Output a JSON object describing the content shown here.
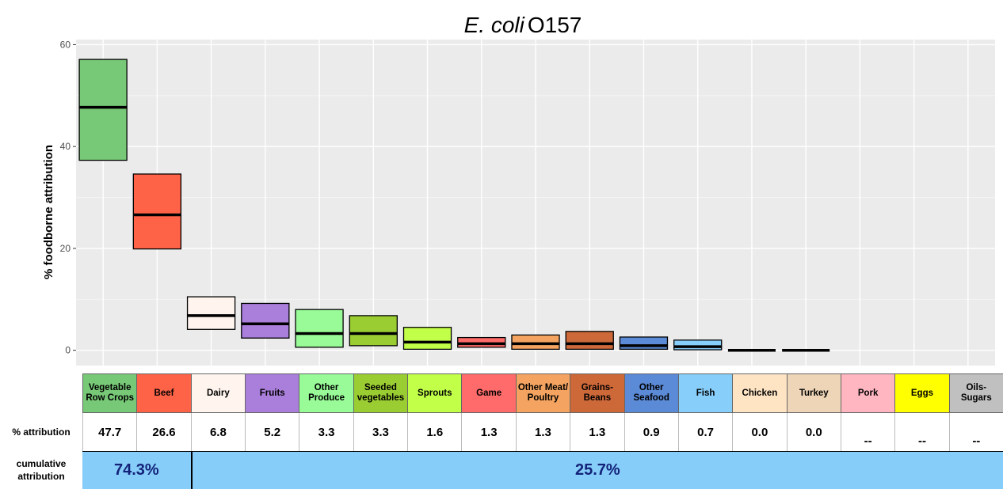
{
  "chart_data": {
    "type": "box",
    "title_italic": "E. coli",
    "title_rest": "O157",
    "ylabel": "% foodborne attribution",
    "ylim": [
      -3,
      61
    ],
    "yticks": [
      0,
      20,
      40,
      60
    ],
    "grid": true,
    "categories": [
      "Vegetable Row Crops",
      "Beef",
      "Dairy",
      "Fruits",
      "Other Produce",
      "Seeded vegetables",
      "Sprouts",
      "Game",
      "Other Meat/ Poultry",
      "Grains-Beans",
      "Other Seafood",
      "Fish",
      "Chicken",
      "Turkey",
      "Pork",
      "Eggs",
      "Oils-Sugars"
    ],
    "boxes": [
      {
        "category": "Vegetable Row Crops",
        "low": 37.3,
        "median": 47.7,
        "high": 57.1,
        "color": "#77c877"
      },
      {
        "category": "Beef",
        "low": 19.9,
        "median": 26.6,
        "high": 34.6,
        "color": "#ff6347"
      },
      {
        "category": "Dairy",
        "low": 4.1,
        "median": 6.8,
        "high": 10.5,
        "color": "#fff5ee"
      },
      {
        "category": "Fruits",
        "low": 2.4,
        "median": 5.2,
        "high": 9.2,
        "color": "#a97fdb"
      },
      {
        "category": "Other Produce",
        "low": 0.6,
        "median": 3.3,
        "high": 8.0,
        "color": "#98fb98"
      },
      {
        "category": "Seeded vegetables",
        "low": 0.9,
        "median": 3.3,
        "high": 6.8,
        "color": "#9acd32"
      },
      {
        "category": "Sprouts",
        "low": 0.2,
        "median": 1.6,
        "high": 4.5,
        "color": "#c2ff48"
      },
      {
        "category": "Game",
        "low": 0.6,
        "median": 1.3,
        "high": 2.5,
        "color": "#ff6a6a"
      },
      {
        "category": "Other Meat/ Poultry",
        "low": 0.2,
        "median": 1.3,
        "high": 3.0,
        "color": "#f4a460"
      },
      {
        "category": "Grains-Beans",
        "low": 0.2,
        "median": 1.3,
        "high": 3.7,
        "color": "#cd6839"
      },
      {
        "category": "Other Seafood",
        "low": 0.2,
        "median": 0.9,
        "high": 2.6,
        "color": "#5b8ad6"
      },
      {
        "category": "Fish",
        "low": 0.1,
        "median": 0.7,
        "high": 2.0,
        "color": "#87cefa"
      },
      {
        "category": "Chicken",
        "low": 0.0,
        "median": 0.0,
        "high": 0.0,
        "color": "#ffe4c4"
      },
      {
        "category": "Turkey",
        "low": 0.0,
        "median": 0.0,
        "high": 0.0,
        "color": "#eed5b7"
      }
    ]
  },
  "table": {
    "attribution_label": "% attribution",
    "cumulative_label": "cumulative attribution",
    "cells": [
      {
        "label": "Vegetable Row Crops",
        "value": "47.7",
        "color": "#77c877"
      },
      {
        "label": "Beef",
        "value": "26.6",
        "color": "#ff6347"
      },
      {
        "label": "Dairy",
        "value": "6.8",
        "color": "#fff5ee"
      },
      {
        "label": "Fruits",
        "value": "5.2",
        "color": "#a97fdb"
      },
      {
        "label": "Other Produce",
        "value": "3.3",
        "color": "#98fb98"
      },
      {
        "label": "Seeded vegetables",
        "value": "3.3",
        "color": "#9acd32"
      },
      {
        "label": "Sprouts",
        "value": "1.6",
        "color": "#c2ff48"
      },
      {
        "label": "Game",
        "value": "1.3",
        "color": "#ff6a6a"
      },
      {
        "label": "Other Meat/ Poultry",
        "value": "1.3",
        "color": "#f4a460"
      },
      {
        "label": "Grains- Beans",
        "value": "1.3",
        "color": "#cd6839"
      },
      {
        "label": "Other Seafood",
        "value": "0.9",
        "color": "#5b8ad6"
      },
      {
        "label": "Fish",
        "value": "0.7",
        "color": "#87cefa"
      },
      {
        "label": "Chicken",
        "value": "0.0",
        "color": "#ffe4c4"
      },
      {
        "label": "Turkey",
        "value": "0.0",
        "color": "#eed5b7"
      },
      {
        "label": "Pork",
        "value": "--",
        "color": "#ffb6c1"
      },
      {
        "label": "Eggs",
        "value": "--",
        "color": "#ffff00"
      },
      {
        "label": "Oils- Sugars",
        "value": "--",
        "color": "#c0c0c0"
      }
    ],
    "cumulative": [
      {
        "text": "74.3%",
        "span": 2
      },
      {
        "text": "25.7%",
        "span": 15
      }
    ]
  }
}
